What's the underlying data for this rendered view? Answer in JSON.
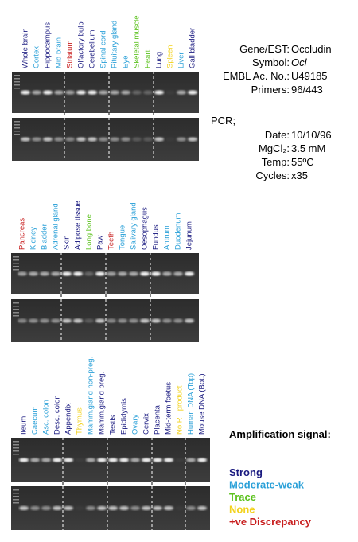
{
  "info": {
    "rows": [
      {
        "label": "Gene/EST:",
        "value": "Occludin"
      },
      {
        "label": "Symbol:",
        "value": "Ocl"
      },
      {
        "label": "EMBL Ac. No.:",
        "value": "U49185"
      },
      {
        "label": "Primers:",
        "value": "96/443"
      }
    ],
    "pcr": "PCR;",
    "pcr_rows": [
      {
        "label": "Date:",
        "value": "10/10/96"
      },
      {
        "label": "MgCl₂:",
        "value": "3.5 mM"
      },
      {
        "label": "Temp:",
        "value": "55ºC"
      },
      {
        "label": "Cycles:",
        "value": "x35"
      }
    ]
  },
  "panels": [
    {
      "lanes": [
        {
          "label": "Whole brain",
          "color": "#1a1a80"
        },
        {
          "label": "Cortex",
          "color": "#2aa0d8"
        },
        {
          "label": "Hippocampus",
          "color": "#1a1a80"
        },
        {
          "label": "Mid brain",
          "color": "#2aa0d8"
        },
        {
          "label": "Striatum",
          "color": "#c81e1e"
        },
        {
          "label": "Olfactory bulb",
          "color": "#1a1a80"
        },
        {
          "label": "Cerebellum",
          "color": "#1a1a80"
        },
        {
          "label": "Spinal cord",
          "color": "#2aa0d8"
        },
        {
          "label": "Pituitary gland",
          "color": "#2aa0d8"
        },
        {
          "label": "Eye",
          "color": "#2aa0d8"
        },
        {
          "label": "Skeletal muscle",
          "color": "#5cc21e"
        },
        {
          "label": "Heart",
          "color": "#5cc21e"
        },
        {
          "label": "Lung",
          "color": "#1a1a80"
        },
        {
          "label": "Spleen",
          "color": "#f2d21e"
        },
        {
          "label": "Liver",
          "color": "#2aa0d8"
        },
        {
          "label": "Gall bladder",
          "color": "#1a1a80"
        }
      ]
    },
    {
      "lanes": [
        {
          "label": "Pancreas",
          "color": "#c81e1e"
        },
        {
          "label": "Kidney",
          "color": "#2aa0d8"
        },
        {
          "label": "Bladder",
          "color": "#2aa0d8"
        },
        {
          "label": "Adrenal gland",
          "color": "#2aa0d8"
        },
        {
          "label": "Skin",
          "color": "#1a1a80"
        },
        {
          "label": "Adipose tissue",
          "color": "#1a1a80"
        },
        {
          "label": "Long bone",
          "color": "#5cc21e"
        },
        {
          "label": "Paw",
          "color": "#1a1a80"
        },
        {
          "label": "Teeth",
          "color": "#c81e1e"
        },
        {
          "label": "Tongue",
          "color": "#2aa0d8"
        },
        {
          "label": "Salivary gland",
          "color": "#2aa0d8"
        },
        {
          "label": "Oesophagus",
          "color": "#1a1a80"
        },
        {
          "label": "Fundus",
          "color": "#1a1a80"
        },
        {
          "label": "Antrum",
          "color": "#2aa0d8"
        },
        {
          "label": "Duodenum",
          "color": "#2aa0d8"
        },
        {
          "label": "Jejunum",
          "color": "#1a1a80"
        }
      ]
    },
    {
      "lanes": [
        {
          "label": "Ileum",
          "color": "#1a1a80"
        },
        {
          "label": "Caecum",
          "color": "#2aa0d8"
        },
        {
          "label": "Asc. colon",
          "color": "#2aa0d8"
        },
        {
          "label": "Desc. colon",
          "color": "#1a1a80"
        },
        {
          "label": "Appendix",
          "color": "#1a1a80"
        },
        {
          "label": "Thymus",
          "color": "#f2d21e"
        },
        {
          "label": "Mamm.gland non-preg.",
          "color": "#2aa0d8"
        },
        {
          "label": "Mamm.gland preg.",
          "color": "#1a1a80"
        },
        {
          "label": "Testis",
          "color": "#1a1a80"
        },
        {
          "label": "Epididymis",
          "color": "#1a1a80"
        },
        {
          "label": "Ovary",
          "color": "#2aa0d8"
        },
        {
          "label": "Cervix",
          "color": "#1a1a80"
        },
        {
          "label": "Placenta",
          "color": "#1a1a80"
        },
        {
          "label": "Mid-term foetus",
          "color": "#1a1a80"
        },
        {
          "label": "No RT product",
          "color": "#f2d21e"
        },
        {
          "label": "Human DNA (Top)",
          "color": "#2aa0d8"
        },
        {
          "label": "Mouse DNA (Bot.)",
          "color": "#1a1a80"
        }
      ]
    }
  ],
  "legend": {
    "title": "Amplification signal:",
    "items": [
      {
        "label": "Strong",
        "color": "#1a1a80"
      },
      {
        "label": "Moderate-weak",
        "color": "#2aa0d8"
      },
      {
        "label": "Trace",
        "color": "#5cc21e"
      },
      {
        "label": "None",
        "color": "#f2d21e"
      },
      {
        "label": "+ve Discrepancy",
        "color": "#c81e1e"
      }
    ]
  }
}
